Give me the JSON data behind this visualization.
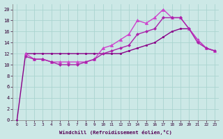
{
  "xlabel": "Windchill (Refroidissement éolien,°C)",
  "bg_color": "#cce8e6",
  "grid_color": "#aad4d0",
  "xlim": [
    -0.5,
    23.5
  ],
  "ylim": [
    0,
    21
  ],
  "xticks": [
    0,
    1,
    2,
    3,
    4,
    5,
    6,
    7,
    8,
    9,
    10,
    11,
    12,
    13,
    14,
    15,
    16,
    17,
    18,
    19,
    20,
    21,
    22,
    23
  ],
  "yticks": [
    0,
    2,
    4,
    6,
    8,
    10,
    12,
    14,
    16,
    18,
    20
  ],
  "series": [
    {
      "x": [
        0,
        1,
        2,
        3,
        4,
        5,
        6,
        7,
        8,
        9,
        10,
        11,
        12,
        13,
        14,
        15,
        16,
        17,
        18,
        19,
        20,
        21,
        22,
        23
      ],
      "y": [
        0,
        12,
        12,
        12,
        12,
        12,
        12,
        12,
        12,
        12,
        12,
        12,
        12,
        12.5,
        13,
        13.5,
        14,
        15,
        16,
        16.5,
        16.5,
        14.5,
        13,
        12.5
      ],
      "color": "#880088",
      "marker": "s",
      "ms": 2.0,
      "lw": 1.0
    },
    {
      "x": [
        1,
        2,
        3,
        4,
        5,
        6,
        7,
        8,
        9,
        10,
        11,
        12,
        13,
        14,
        15,
        16,
        17,
        18,
        19,
        20,
        21,
        22,
        23
      ],
      "y": [
        12,
        11,
        11,
        10.5,
        10.5,
        10.5,
        10.5,
        10.5,
        11,
        13,
        13.5,
        14.5,
        15.5,
        18,
        17.5,
        18.5,
        20.0,
        18.5,
        18.5,
        16.5,
        14.5,
        13,
        12.5
      ],
      "color": "#cc44cc",
      "marker": "^",
      "ms": 3.0,
      "lw": 1.0
    },
    {
      "x": [
        1,
        2,
        3,
        4,
        5,
        6,
        7,
        8,
        9,
        10,
        11,
        12,
        13,
        14,
        15,
        16,
        17,
        18,
        19,
        20,
        21,
        22,
        23
      ],
      "y": [
        11.5,
        11,
        11,
        10.5,
        10,
        10,
        10,
        10.5,
        11,
        12,
        12.5,
        13,
        13.5,
        15.5,
        16,
        16.5,
        18.5,
        18.5,
        18.5,
        16.5,
        14,
        13,
        12.5
      ],
      "color": "#aa22aa",
      "marker": "D",
      "ms": 2.0,
      "lw": 1.0
    }
  ]
}
